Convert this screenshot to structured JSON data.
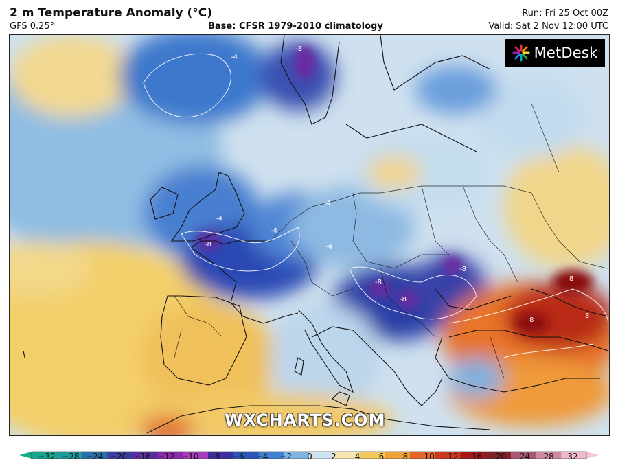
{
  "header": {
    "title": "2 m Temperature Anomaly (°C)",
    "model": "GFS 0.25°",
    "base": "Base: CFSR 1979-2010 climatology",
    "run": "Run: Fri 25 Oct 00Z",
    "valid": "Valid: Sat 2 Nov 12:00 UTC"
  },
  "branding": {
    "logo_text": "MetDesk",
    "watermark": "WXCHARTS.COM"
  },
  "map": {
    "region": "Europe",
    "contour_labels": [
      {
        "value": "-4",
        "near": "Norwegian Sea"
      },
      {
        "value": "-8",
        "near": "Scandinavia"
      },
      {
        "value": "-4",
        "near": "British Isles"
      },
      {
        "value": "-4",
        "near": "Benelux"
      },
      {
        "value": "-8",
        "near": "France"
      },
      {
        "value": "-4",
        "near": "Germany"
      },
      {
        "value": "-8",
        "near": "Bosnia"
      },
      {
        "value": "-8",
        "near": "Serbia"
      },
      {
        "value": "-8",
        "near": "Romania"
      },
      {
        "value": "-4",
        "near": "Alps"
      },
      {
        "value": "8",
        "near": "Black Sea coast"
      },
      {
        "value": "8",
        "near": "Caucasus"
      },
      {
        "value": "8",
        "near": "Eastern Turkey"
      }
    ],
    "anomaly_colors": {
      "strong_cold": "#1e3fa8",
      "cold": "#4d8fd4",
      "cool": "#a8cce8",
      "neutral": "#e6eef5",
      "warm": "#f0c868",
      "hot": "#e36a1e",
      "very_hot": "#a5180f"
    }
  },
  "colorbar": {
    "ticks": [
      "−32",
      "−28",
      "−24",
      "−20",
      "−16",
      "−12",
      "−10",
      "−8",
      "−6",
      "−4",
      "−2",
      "0",
      "2",
      "4",
      "6",
      "8",
      "10",
      "12",
      "16",
      "20",
      "24",
      "28",
      "32"
    ],
    "colors": [
      "#1ba58f",
      "#1e9a9a",
      "#2a6fa8",
      "#3b3fa2",
      "#5a2ea0",
      "#8a2aa8",
      "#a63cbc",
      "#3c2e9e",
      "#2d55b8",
      "#3f80cf",
      "#7eb5e2",
      "#cfe3f1",
      "#f6e6b0",
      "#f2c95b",
      "#efa13a",
      "#e4672a",
      "#c73a1e",
      "#a01818",
      "#82202a",
      "#a85a70",
      "#d08aa0",
      "#f0b8cc"
    ]
  }
}
